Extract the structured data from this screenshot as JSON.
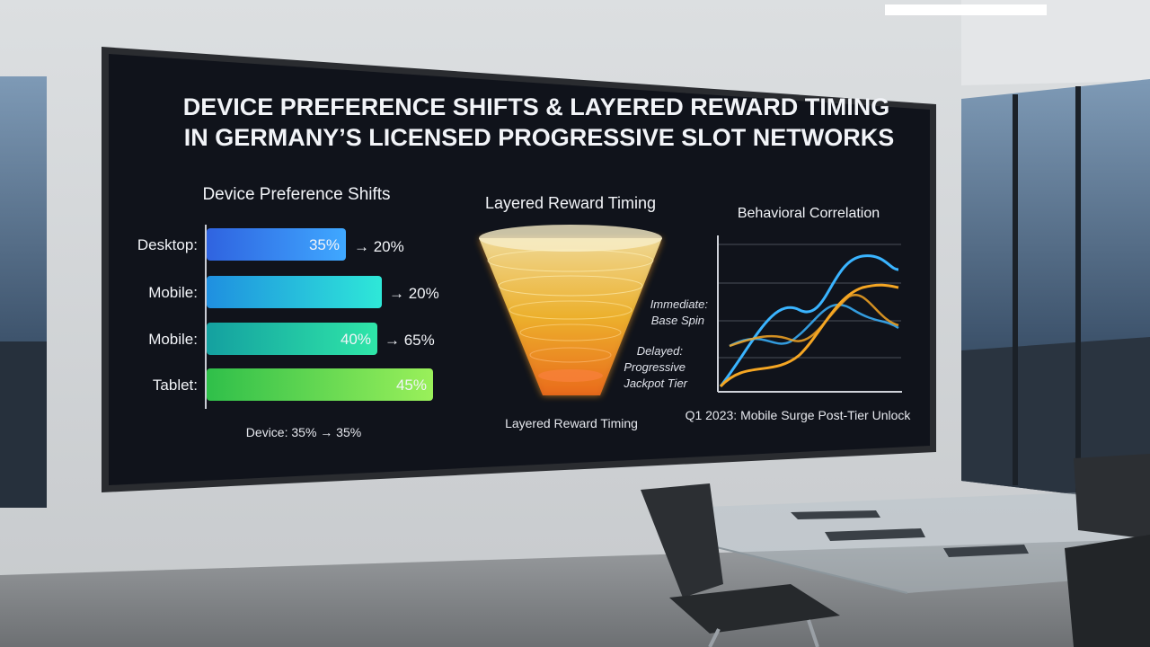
{
  "screen": {
    "title_lines": [
      "DEVICE PREFERENCE SHIFTS & LAYERED REWARD TIMING",
      "IN GERMANY’S LICENSED PROGRESSIVE SLOT NETWORKS"
    ],
    "device_panel": {
      "heading": "Device Preference Shifts",
      "rows": [
        {
          "label": "Desktop:",
          "bar_text": "35%",
          "change": "→ 20%"
        },
        {
          "label": "Mobile:",
          "change": "→ 20%"
        },
        {
          "label": "Mobile:",
          "bar_text": "40%",
          "change": "→ 65%"
        },
        {
          "label": "Tablet:",
          "bar_text": "45%"
        }
      ],
      "footer": "Device: 35% → 35%"
    },
    "reward_panel": {
      "heading": "Layered Reward Timing",
      "annotations": [
        "Immediate:",
        "Base Spin",
        "Delayed:",
        "Progressive",
        "Jackpot Tier"
      ],
      "footer": "Layered Reward Timing"
    },
    "correlation_panel": {
      "heading": "Behavioral Correlation",
      "caption": "Q1 2023: Mobile Surge Post-Tier Unlock"
    }
  }
}
